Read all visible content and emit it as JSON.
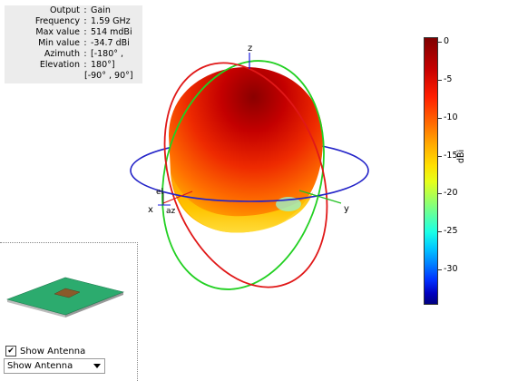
{
  "info": {
    "rows": [
      {
        "key": "Output",
        "value": "Gain"
      },
      {
        "key": "Frequency",
        "value": "1.59 GHz"
      },
      {
        "key": "Max value",
        "value": "514 mdBi"
      },
      {
        "key": "Min value",
        "value": "-34.7 dBi"
      },
      {
        "key": "Azimuth",
        "value": "[-180° ,"
      },
      {
        "key": "Elevation",
        "value": "180°]"
      }
    ],
    "continuation": "[-90° , 90°]"
  },
  "axes": {
    "x": "x",
    "y": "y",
    "z": "z",
    "el": "el",
    "az": "az"
  },
  "colorbar": {
    "unit": "dBi",
    "ticks": [
      "0",
      "-5",
      "-10",
      "-15",
      "-20",
      "-25",
      "-30"
    ]
  },
  "controls": {
    "show_antenna_label": "Show Antenna",
    "show_antenna_checked": true,
    "dropdown_value": "Show Antenna"
  },
  "colors": {
    "azimuth_cut": "#2323c8",
    "elevation_cut_1": "#e01818",
    "elevation_cut_2": "#22d022",
    "patch": "#2cab6e",
    "feed": "#8a5a2a"
  }
}
